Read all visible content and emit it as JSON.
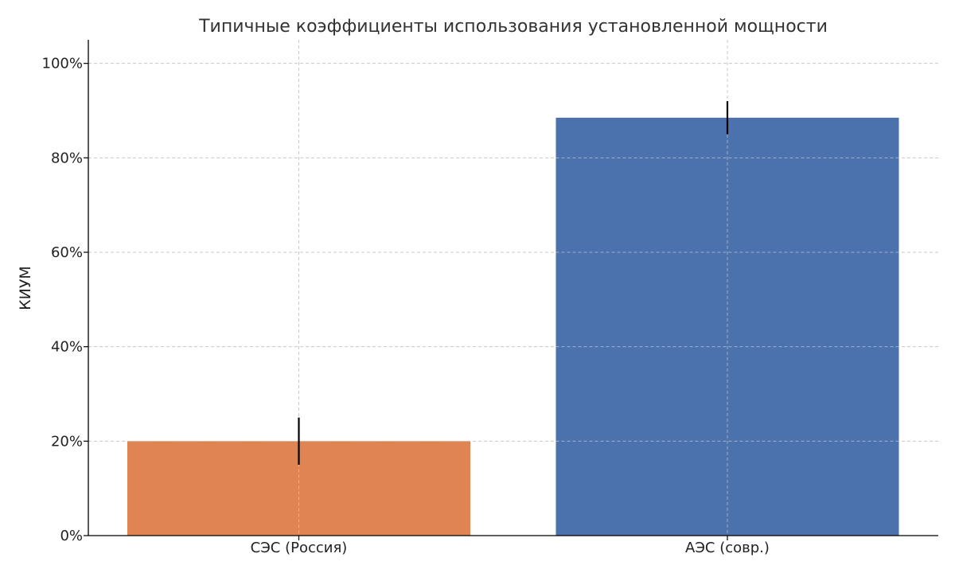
{
  "chart_data": {
    "type": "bar",
    "title": "Типичные коэффициенты использования установленной мощности",
    "xlabel": "",
    "ylabel": "КИУМ",
    "categories": [
      "СЭС (Россия)",
      "АЭС (совр.)"
    ],
    "values": [
      20,
      88.5
    ],
    "error_low": [
      15,
      85
    ],
    "error_high": [
      25,
      92
    ],
    "bar_colors": [
      "#DF8453",
      "#4C72AE"
    ],
    "ylim": [
      0,
      105
    ],
    "yticks": [
      0,
      20,
      40,
      60,
      80,
      100
    ],
    "ytick_labels": [
      "0%",
      "20%",
      "40%",
      "60%",
      "80%",
      "100%"
    ],
    "grid": true
  }
}
